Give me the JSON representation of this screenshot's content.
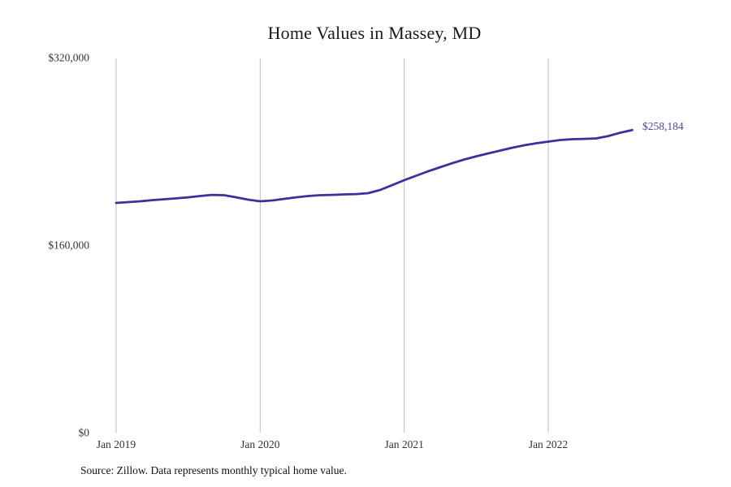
{
  "page": {
    "title": "Home Values in Massey, MD",
    "source_note": "Source: Zillow. Data represents monthly typical home value."
  },
  "chart_data": {
    "type": "line",
    "title": "Home Values in Massey, MD",
    "xlabel": "",
    "ylabel": "",
    "ylim": [
      0,
      320000
    ],
    "grid": "vertical-only",
    "legend": "none",
    "line_color": "#38329e",
    "gridline_color": "#bdbdbd",
    "tick_label_color": "#333333",
    "end_label": "$258,184",
    "end_label_color": "#4b4b9f",
    "final_value": 258184,
    "x": [
      "2019-01",
      "2019-02",
      "2019-03",
      "2019-04",
      "2019-05",
      "2019-06",
      "2019-07",
      "2019-08",
      "2019-09",
      "2019-10",
      "2019-11",
      "2019-12",
      "2020-01",
      "2020-02",
      "2020-03",
      "2020-04",
      "2020-05",
      "2020-06",
      "2020-07",
      "2020-08",
      "2020-09",
      "2020-10",
      "2020-11",
      "2020-12",
      "2021-01",
      "2021-02",
      "2021-03",
      "2021-04",
      "2021-05",
      "2021-06",
      "2021-07",
      "2021-08",
      "2021-09",
      "2021-10",
      "2021-11",
      "2021-12",
      "2022-01",
      "2022-02",
      "2022-03",
      "2022-04",
      "2022-05",
      "2022-06",
      "2022-07",
      "2022-08"
    ],
    "series": [
      {
        "name": "Monthly typical home value",
        "values": [
          196000,
          196700,
          197400,
          198400,
          199100,
          199900,
          200800,
          201900,
          202900,
          202600,
          200800,
          198800,
          197400,
          198100,
          199500,
          200800,
          201900,
          202600,
          202900,
          203300,
          203600,
          204300,
          207100,
          211200,
          215400,
          219200,
          223000,
          226500,
          229900,
          233100,
          235800,
          238300,
          240700,
          243100,
          245200,
          246900,
          248300,
          249700,
          250400,
          250700,
          251100,
          253100,
          255900,
          258184
        ]
      }
    ],
    "y_ticks": [
      {
        "label": "$0",
        "value": 0
      },
      {
        "label": "$160,000",
        "value": 160000
      },
      {
        "label": "$320,000",
        "value": 320000
      }
    ],
    "x_ticks": [
      {
        "label": "Jan 2019",
        "month_index": 0
      },
      {
        "label": "Jan 2020",
        "month_index": 12
      },
      {
        "label": "Jan 2021",
        "month_index": 24
      },
      {
        "label": "Jan 2022",
        "month_index": 36
      }
    ]
  }
}
